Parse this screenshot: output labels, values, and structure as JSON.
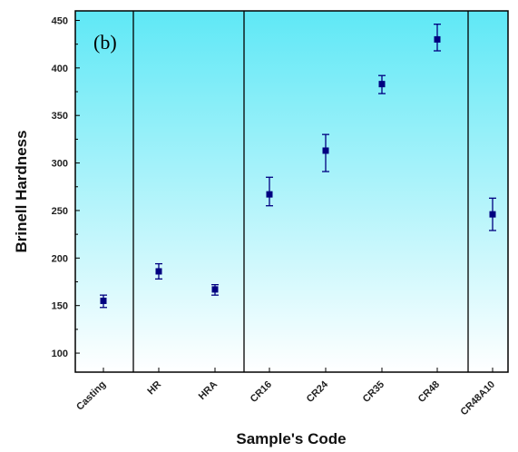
{
  "chart_data": {
    "type": "scatter",
    "panel_label": "(b)",
    "xlabel": "Sample's Code",
    "ylabel": "Brinell Hardness",
    "ylim": [
      80,
      460
    ],
    "yticks": [
      100,
      150,
      200,
      250,
      300,
      350,
      400,
      450
    ],
    "categories": [
      "Casting",
      "HR",
      "HRA",
      "CR16",
      "CR24",
      "CR35",
      "CR48",
      "CR48A10"
    ],
    "group_dividers_after": [
      "Casting",
      "HRA",
      "CR48"
    ],
    "series": [
      {
        "marker": "square",
        "color": "#000080",
        "values": [
          155,
          186,
          167,
          267,
          313,
          383,
          430,
          246
        ],
        "err_low": [
          148,
          178,
          161,
          255,
          291,
          373,
          418,
          229
        ],
        "err_high": [
          161,
          194,
          172,
          285,
          330,
          392,
          446,
          263
        ]
      }
    ],
    "background_gradient": [
      "#5fe8f6",
      "#ffffff"
    ],
    "grid": false
  }
}
